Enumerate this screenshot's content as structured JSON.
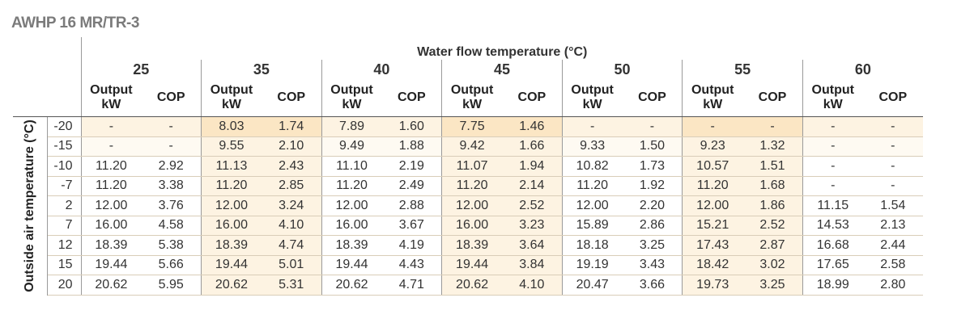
{
  "title": "AWHP 16 MR/TR-3",
  "header": {
    "flow_title": "Water flow temperature (°C)",
    "output_label": "Output kW",
    "output_line1": "Output",
    "output_line2": "kW",
    "cop_label": "COP"
  },
  "axis_label": "Outside air temperature (°C)",
  "water_temps": [
    "25",
    "35",
    "40",
    "45",
    "50",
    "55",
    "60"
  ],
  "rows": [
    {
      "air": "-20",
      "values": [
        "-",
        "-",
        "8.03",
        "1.74",
        "7.89",
        "1.60",
        "7.75",
        "1.46",
        "-",
        "-",
        "-",
        "-",
        "-",
        "-"
      ]
    },
    {
      "air": "-15",
      "values": [
        "-",
        "-",
        "9.55",
        "2.10",
        "9.49",
        "1.88",
        "9.42",
        "1.66",
        "9.33",
        "1.50",
        "9.23",
        "1.32",
        "-",
        "-"
      ]
    },
    {
      "air": "-10",
      "values": [
        "11.20",
        "2.92",
        "11.13",
        "2.43",
        "11.10",
        "2.19",
        "11.07",
        "1.94",
        "10.82",
        "1.73",
        "10.57",
        "1.51",
        "-",
        "-"
      ]
    },
    {
      "air": "-7",
      "values": [
        "11.20",
        "3.38",
        "11.20",
        "2.85",
        "11.20",
        "2.49",
        "11.20",
        "2.14",
        "11.20",
        "1.92",
        "11.20",
        "1.68",
        "-",
        "-"
      ]
    },
    {
      "air": "2",
      "values": [
        "12.00",
        "3.76",
        "12.00",
        "3.24",
        "12.00",
        "2.88",
        "12.00",
        "2.52",
        "12.00",
        "2.20",
        "12.00",
        "1.86",
        "11.15",
        "1.54"
      ]
    },
    {
      "air": "7",
      "values": [
        "16.00",
        "4.58",
        "16.00",
        "4.10",
        "16.00",
        "3.67",
        "16.00",
        "3.23",
        "15.89",
        "2.86",
        "15.21",
        "2.52",
        "14.53",
        "2.13"
      ]
    },
    {
      "air": "12",
      "values": [
        "18.39",
        "5.38",
        "18.39",
        "4.74",
        "18.39",
        "4.19",
        "18.39",
        "3.64",
        "18.18",
        "3.25",
        "17.43",
        "2.87",
        "16.68",
        "2.44"
      ]
    },
    {
      "air": "15",
      "values": [
        "19.44",
        "5.66",
        "19.44",
        "5.01",
        "19.44",
        "4.43",
        "19.44",
        "3.84",
        "19.19",
        "3.43",
        "18.42",
        "3.02",
        "17.65",
        "2.58"
      ]
    },
    {
      "air": "20",
      "values": [
        "20.62",
        "5.95",
        "20.62",
        "5.31",
        "20.62",
        "4.71",
        "20.62",
        "4.10",
        "20.47",
        "3.66",
        "19.73",
        "3.25",
        "18.99",
        "2.80"
      ]
    }
  ]
}
